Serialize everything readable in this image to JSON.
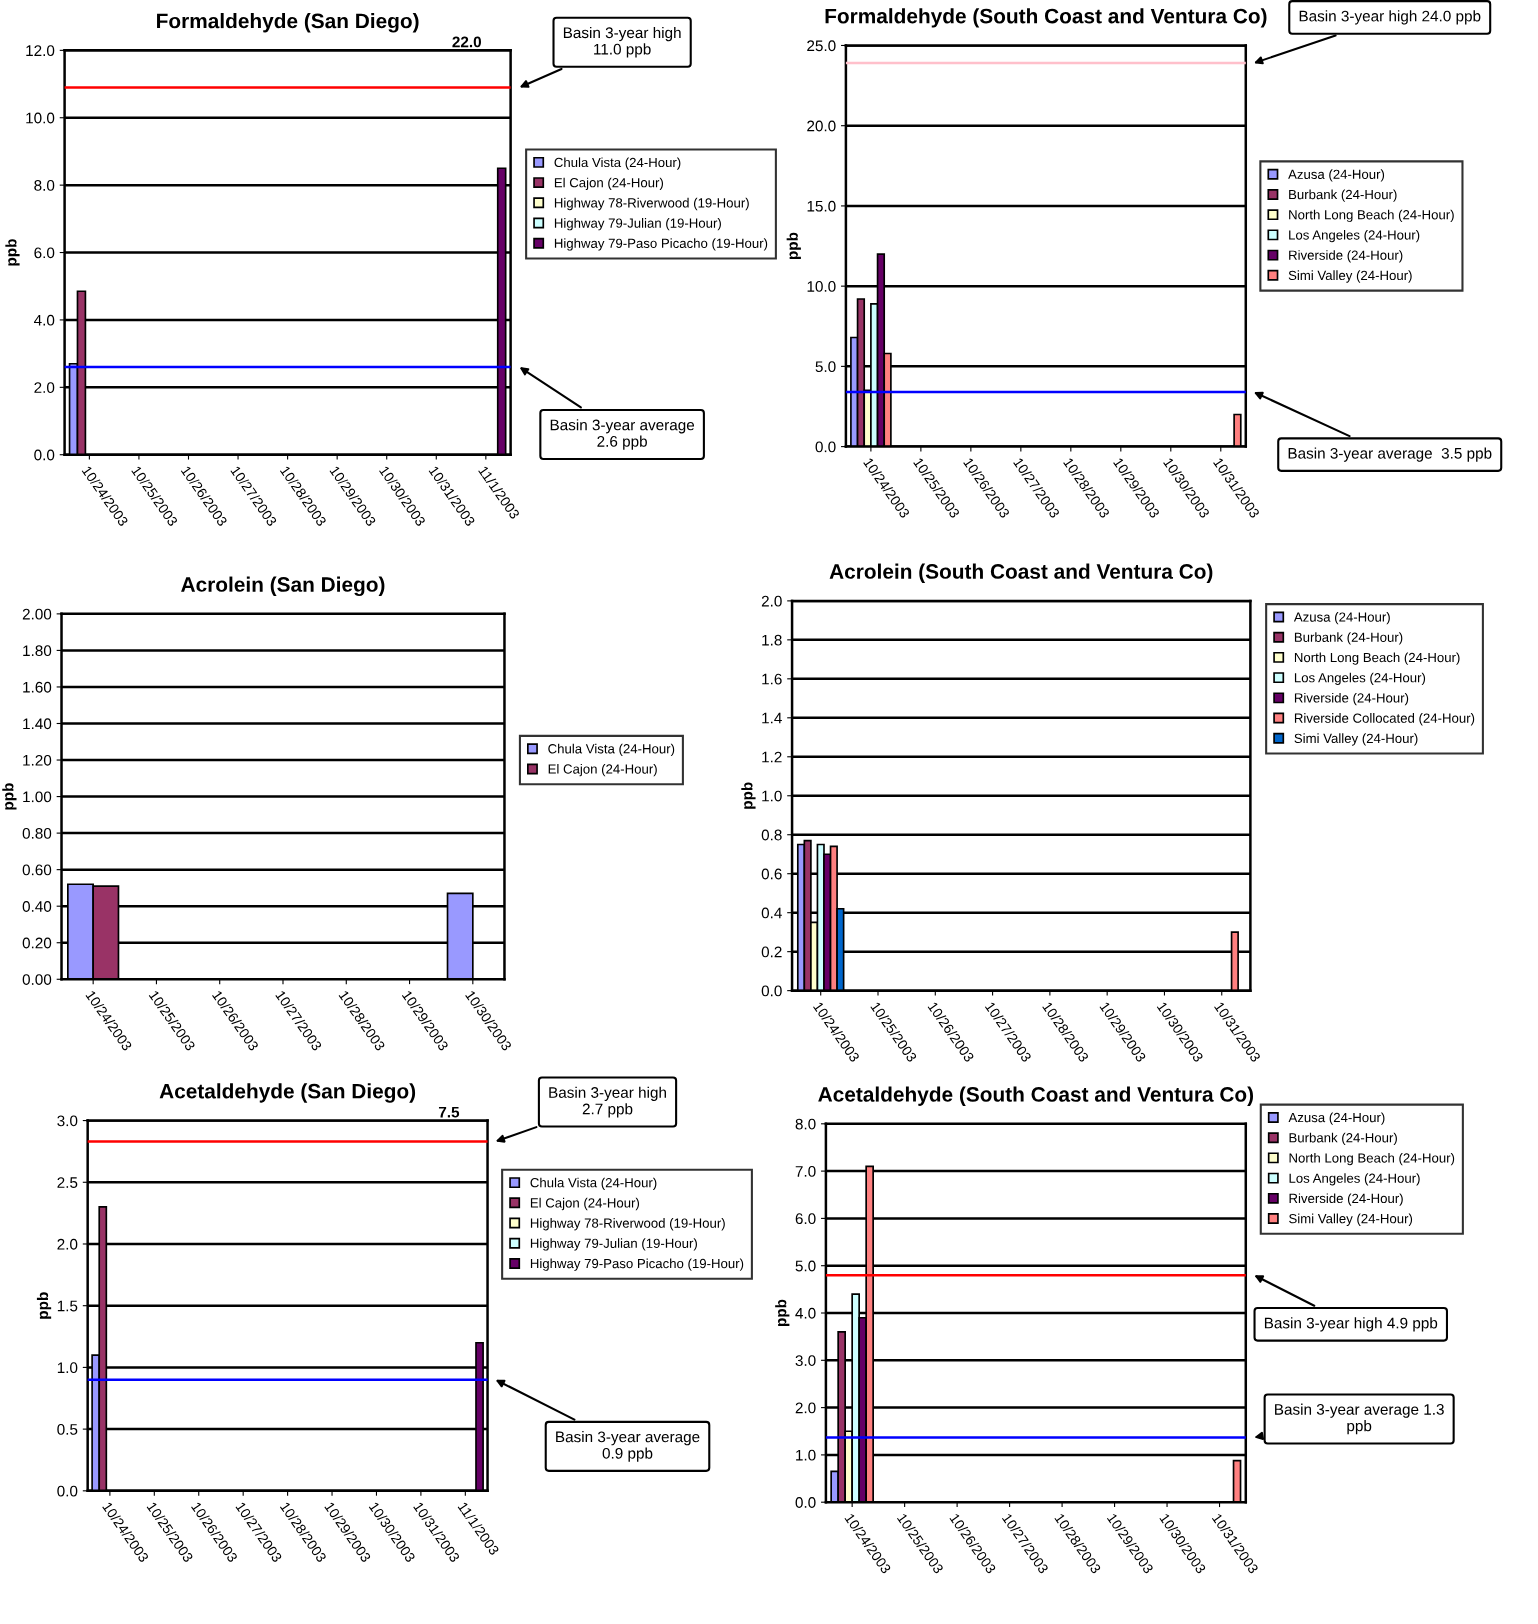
{
  "chart_data": [
    {
      "type": "bar",
      "title": "Formaldehyde (San Diego)",
      "ylabel": "ppb",
      "categories": [
        "10/24/2003",
        "10/25/2003",
        "10/26/2003",
        "10/27/2003",
        "10/28/2003",
        "10/29/2003",
        "10/30/2003",
        "10/31/2003",
        "11/1/2003"
      ],
      "series": [
        {
          "name": "Chula Vista (24-Hour)",
          "color": "#9999ff",
          "values": [
            2.7,
            null,
            null,
            null,
            null,
            null,
            null,
            null,
            null
          ]
        },
        {
          "name": "El Cajon (24-Hour)",
          "color": "#993366",
          "values": [
            4.85,
            null,
            null,
            null,
            null,
            null,
            null,
            null,
            null
          ]
        },
        {
          "name": "Highway 78-Riverwood (19-Hour)",
          "color": "#ffffcc",
          "values": [
            null,
            null,
            null,
            null,
            null,
            null,
            null,
            null,
            null
          ]
        },
        {
          "name": "Highway 79-Julian (19-Hour)",
          "color": "#ccffff",
          "values": [
            null,
            null,
            null,
            null,
            null,
            null,
            null,
            null,
            null
          ]
        },
        {
          "name": "Highway 79-Paso Picacho (19-Hour)",
          "color": "#660066",
          "values": [
            null,
            null,
            null,
            null,
            null,
            null,
            null,
            null,
            8.5
          ]
        }
      ],
      "ylim": [
        0,
        12
      ],
      "yticks": [
        {
          "value": 0,
          "label": "0.0"
        },
        {
          "value": 2,
          "label": "2.0"
        },
        {
          "value": 4,
          "label": "4.0"
        },
        {
          "value": 6,
          "label": "6.0"
        },
        {
          "value": 8,
          "label": "8.0"
        },
        {
          "value": 10,
          "label": "10.0"
        },
        {
          "value": 12,
          "label": "12.0"
        }
      ],
      "ref_lines": [
        {
          "axis": "y",
          "value": 10.9,
          "color": "#ff0000"
        },
        {
          "axis": "y",
          "value": 2.6,
          "color": "#0000ff"
        }
      ],
      "annotations": [
        "Basin 3-year high\n11.0 ppb",
        "Basin 3-year average\n2.6 ppb",
        "22.0"
      ],
      "grid": "y",
      "legend": "right"
    },
    {
      "type": "bar",
      "title": "Formaldehyde (South Coast and Ventura Co)",
      "ylabel": "ppb",
      "categories": [
        "10/24/2003",
        "10/25/2003",
        "10/26/2003",
        "10/27/2003",
        "10/28/2003",
        "10/29/2003",
        "10/30/2003",
        "10/31/2003"
      ],
      "series": [
        {
          "name": "Azusa (24-Hour)",
          "color": "#9999ff",
          "values": [
            6.8,
            null,
            null,
            null,
            null,
            null,
            null,
            null
          ]
        },
        {
          "name": "Burbank (24-Hour)",
          "color": "#993366",
          "values": [
            9.2,
            null,
            null,
            null,
            null,
            null,
            null,
            null
          ]
        },
        {
          "name": "North Long Beach (24-Hour)",
          "color": "#ffffcc",
          "values": [
            3.5,
            null,
            null,
            null,
            null,
            null,
            null,
            null
          ]
        },
        {
          "name": "Los Angeles (24-Hour)",
          "color": "#ccffff",
          "values": [
            8.9,
            null,
            null,
            null,
            null,
            null,
            null,
            null
          ]
        },
        {
          "name": "Riverside (24-Hour)",
          "color": "#660066",
          "values": [
            12.0,
            null,
            null,
            null,
            null,
            null,
            null,
            null
          ]
        },
        {
          "name": "Simi Valley (24-Hour)",
          "color": "#ff8080",
          "values": [
            5.8,
            null,
            null,
            null,
            null,
            null,
            null,
            2.0
          ]
        }
      ],
      "ylim": [
        0,
        25
      ],
      "yticks": [
        {
          "value": 0,
          "label": "0.0"
        },
        {
          "value": 5,
          "label": "5.0"
        },
        {
          "value": 10,
          "label": "10.0"
        },
        {
          "value": 15,
          "label": "15.0"
        },
        {
          "value": 20,
          "label": "20.0"
        },
        {
          "value": 25,
          "label": "25.0"
        }
      ],
      "ref_lines": [
        {
          "axis": "y",
          "value": 23.9,
          "color": "#ffc0cb"
        },
        {
          "axis": "y",
          "value": 3.4,
          "color": "#0000ff"
        }
      ],
      "annotations": [
        "Basin 3-year high 24.0 ppb",
        "Basin 3-year average  3.5 ppb"
      ],
      "grid": "y",
      "legend": "right"
    },
    {
      "type": "bar",
      "title": "Acrolein (San Diego)",
      "ylabel": "ppb",
      "categories": [
        "10/24/2003",
        "10/25/2003",
        "10/26/2003",
        "10/27/2003",
        "10/28/2003",
        "10/29/2003",
        "10/30/2003"
      ],
      "series": [
        {
          "name": "Chula Vista (24-Hour)",
          "color": "#9999ff",
          "values": [
            0.52,
            null,
            null,
            null,
            null,
            null,
            0.47
          ]
        },
        {
          "name": "El Cajon (24-Hour)",
          "color": "#993366",
          "values": [
            0.51,
            null,
            null,
            null,
            null,
            null,
            null
          ]
        }
      ],
      "ylim": [
        0,
        2
      ],
      "yticks": [
        {
          "value": 0,
          "label": "0.00"
        },
        {
          "value": 0.2,
          "label": "0.20"
        },
        {
          "value": 0.4,
          "label": "0.40"
        },
        {
          "value": 0.6,
          "label": "0.60"
        },
        {
          "value": 0.8,
          "label": "0.80"
        },
        {
          "value": 1.0,
          "label": "1.00"
        },
        {
          "value": 1.2,
          "label": "1.20"
        },
        {
          "value": 1.4,
          "label": "1.40"
        },
        {
          "value": 1.6,
          "label": "1.60"
        },
        {
          "value": 1.8,
          "label": "1.80"
        },
        {
          "value": 2.0,
          "label": "2.00"
        }
      ],
      "grid": "y",
      "legend": "right"
    },
    {
      "type": "bar",
      "title": "Acrolein (South Coast and Ventura Co)",
      "ylabel": "ppb",
      "categories": [
        "10/24/2003",
        "10/25/2003",
        "10/26/2003",
        "10/27/2003",
        "10/28/2003",
        "10/29/2003",
        "10/30/2003",
        "10/31/2003"
      ],
      "series": [
        {
          "name": "Azusa (24-Hour)",
          "color": "#9999ff",
          "values": [
            0.75,
            null,
            null,
            null,
            null,
            null,
            null,
            null
          ]
        },
        {
          "name": "Burbank (24-Hour)",
          "color": "#993366",
          "values": [
            0.77,
            null,
            null,
            null,
            null,
            null,
            null,
            null
          ]
        },
        {
          "name": "North Long Beach (24-Hour)",
          "color": "#ffffcc",
          "values": [
            0.35,
            null,
            null,
            null,
            null,
            null,
            null,
            null
          ]
        },
        {
          "name": "Los Angeles (24-Hour)",
          "color": "#ccffff",
          "values": [
            0.75,
            null,
            null,
            null,
            null,
            null,
            null,
            null
          ]
        },
        {
          "name": "Riverside (24-Hour)",
          "color": "#660066",
          "values": [
            0.7,
            null,
            null,
            null,
            null,
            null,
            null,
            null
          ]
        },
        {
          "name": "Riverside Collocated (24-Hour)",
          "color": "#ff8080",
          "values": [
            0.74,
            null,
            null,
            null,
            null,
            null,
            null,
            0.3
          ]
        },
        {
          "name": "Simi Valley (24-Hour)",
          "color": "#0066cc",
          "values": [
            0.42,
            null,
            null,
            null,
            null,
            null,
            null,
            null
          ]
        }
      ],
      "ylim": [
        0,
        2
      ],
      "yticks": [
        {
          "value": 0,
          "label": "0.0"
        },
        {
          "value": 0.2,
          "label": "0.2"
        },
        {
          "value": 0.4,
          "label": "0.4"
        },
        {
          "value": 0.6,
          "label": "0.6"
        },
        {
          "value": 0.8,
          "label": "0.8"
        },
        {
          "value": 1.0,
          "label": "1.0"
        },
        {
          "value": 1.2,
          "label": "1.2"
        },
        {
          "value": 1.4,
          "label": "1.4"
        },
        {
          "value": 1.6,
          "label": "1.6"
        },
        {
          "value": 1.8,
          "label": "1.8"
        },
        {
          "value": 2.0,
          "label": "2.0"
        }
      ],
      "grid": "y",
      "legend": "right"
    },
    {
      "type": "bar",
      "title": "Acetaldehyde (San Diego)",
      "ylabel": "ppb",
      "categories": [
        "10/24/2003",
        "10/25/2003",
        "10/26/2003",
        "10/27/2003",
        "10/28/2003",
        "10/29/2003",
        "10/30/2003",
        "10/31/2003",
        "11/1/2003"
      ],
      "series": [
        {
          "name": "Chula Vista (24-Hour)",
          "color": "#9999ff",
          "values": [
            1.1,
            null,
            null,
            null,
            null,
            null,
            null,
            null,
            null
          ]
        },
        {
          "name": "El Cajon (24-Hour)",
          "color": "#993366",
          "values": [
            2.3,
            null,
            null,
            null,
            null,
            null,
            null,
            null,
            null
          ]
        },
        {
          "name": "Highway 78-Riverwood (19-Hour)",
          "color": "#ffffcc",
          "values": [
            null,
            null,
            null,
            null,
            null,
            null,
            null,
            null,
            null
          ]
        },
        {
          "name": "Highway 79-Julian (19-Hour)",
          "color": "#ccffff",
          "values": [
            null,
            null,
            null,
            null,
            null,
            null,
            null,
            null,
            null
          ]
        },
        {
          "name": "Highway 79-Paso Picacho (19-Hour)",
          "color": "#660066",
          "values": [
            null,
            null,
            null,
            null,
            null,
            null,
            null,
            null,
            1.2
          ]
        }
      ],
      "ylim": [
        0,
        3
      ],
      "yticks": [
        {
          "value": 0,
          "label": "0.0"
        },
        {
          "value": 0.5,
          "label": "0.5"
        },
        {
          "value": 1.0,
          "label": "1.0"
        },
        {
          "value": 1.5,
          "label": "1.5"
        },
        {
          "value": 2.0,
          "label": "2.0"
        },
        {
          "value": 2.5,
          "label": "2.5"
        },
        {
          "value": 3.0,
          "label": "3.0"
        }
      ],
      "ref_lines": [
        {
          "axis": "y",
          "value": 2.83,
          "color": "#ff0000"
        },
        {
          "axis": "y",
          "value": 0.9,
          "color": "#0000ff"
        }
      ],
      "annotations": [
        "Basin 3-year high\n2.7 ppb",
        "Basin 3-year average\n0.9 ppb",
        "7.5"
      ],
      "grid": "y",
      "legend": "right"
    },
    {
      "type": "bar",
      "title": "Acetaldehyde (South Coast and Ventura Co)",
      "ylabel": "ppb",
      "categories": [
        "10/24/2003",
        "10/25/2003",
        "10/26/2003",
        "10/27/2003",
        "10/28/2003",
        "10/29/2003",
        "10/30/2003",
        "10/31/2003"
      ],
      "series": [
        {
          "name": "Azusa (24-Hour)",
          "color": "#9999ff",
          "values": [
            0.65,
            null,
            null,
            null,
            null,
            null,
            null,
            null
          ]
        },
        {
          "name": "Burbank (24-Hour)",
          "color": "#993366",
          "values": [
            3.6,
            null,
            null,
            null,
            null,
            null,
            null,
            null
          ]
        },
        {
          "name": "North Long Beach (24-Hour)",
          "color": "#ffffcc",
          "values": [
            1.5,
            null,
            null,
            null,
            null,
            null,
            null,
            null
          ]
        },
        {
          "name": "Los Angeles (24-Hour)",
          "color": "#ccffff",
          "values": [
            4.4,
            null,
            null,
            null,
            null,
            null,
            null,
            null
          ]
        },
        {
          "name": "Riverside (24-Hour)",
          "color": "#660066",
          "values": [
            3.9,
            null,
            null,
            null,
            null,
            null,
            null,
            null
          ]
        },
        {
          "name": "Simi Valley (24-Hour)",
          "color": "#ff8080",
          "values": [
            7.1,
            null,
            null,
            null,
            null,
            null,
            null,
            0.88
          ]
        }
      ],
      "ylim": [
        0,
        8
      ],
      "yticks": [
        {
          "value": 0,
          "label": "0.0"
        },
        {
          "value": 1,
          "label": "1.0"
        },
        {
          "value": 2,
          "label": "2.0"
        },
        {
          "value": 3,
          "label": "3.0"
        },
        {
          "value": 4,
          "label": "4.0"
        },
        {
          "value": 5,
          "label": "5.0"
        },
        {
          "value": 6,
          "label": "6.0"
        },
        {
          "value": 7,
          "label": "7.0"
        },
        {
          "value": 8,
          "label": "8.0"
        }
      ],
      "ref_lines": [
        {
          "axis": "y",
          "value": 4.8,
          "color": "#ff0000"
        },
        {
          "axis": "y",
          "value": 1.37,
          "color": "#0000ff"
        }
      ],
      "annotations": [
        "Basin 3-year high 4.9 ppb",
        "Basin 3-year average 1.3\nppb"
      ],
      "grid": "y",
      "legend": "right"
    }
  ]
}
